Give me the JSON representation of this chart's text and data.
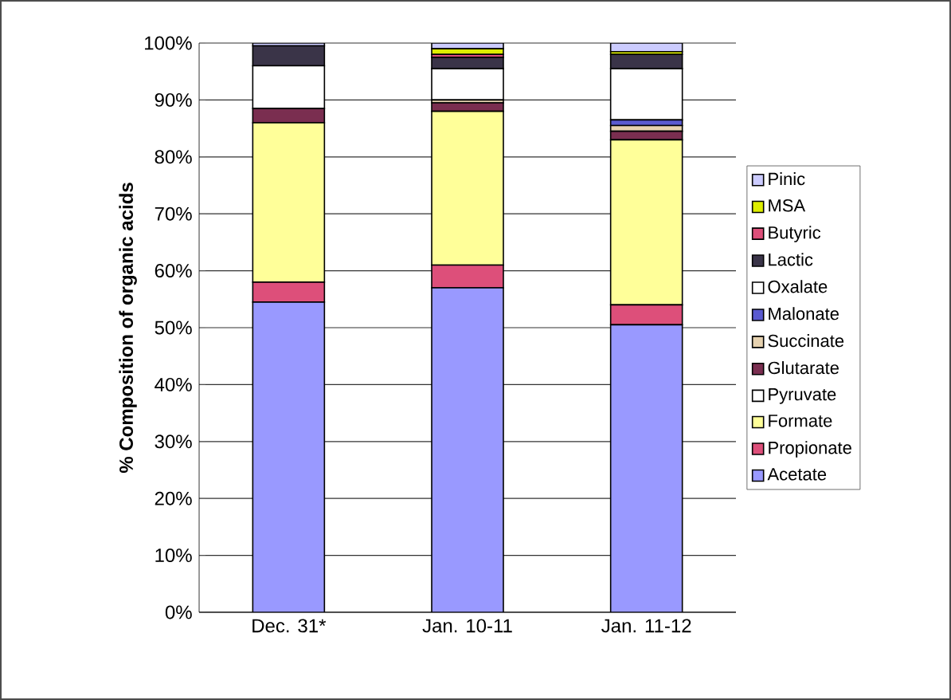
{
  "chart_data": {
    "type": "bar",
    "stacked": true,
    "ylabel": "% Composition of organic acids",
    "categories": [
      "Dec. 31*",
      "Jan. 10-11",
      "Jan. 11-12"
    ],
    "ylim": [
      0,
      100
    ],
    "yticks": [
      {
        "value": 0,
        "label": "0%"
      },
      {
        "value": 10,
        "label": "10%"
      },
      {
        "value": 20,
        "label": "20%"
      },
      {
        "value": 30,
        "label": "30%"
      },
      {
        "value": 40,
        "label": "40%"
      },
      {
        "value": 50,
        "label": "50%"
      },
      {
        "value": 60,
        "label": "60%"
      },
      {
        "value": 70,
        "label": "70%"
      },
      {
        "value": 80,
        "label": "80%"
      },
      {
        "value": 90,
        "label": "90%"
      },
      {
        "value": 100,
        "label": "100%"
      }
    ],
    "grid": "y",
    "legend": "right",
    "series": [
      {
        "name": "Acetate",
        "color": "#9999ff",
        "values": [
          54.5,
          57,
          50.5
        ]
      },
      {
        "name": "Propionate",
        "color": "#dd4f7a",
        "values": [
          3.5,
          4,
          3.5
        ]
      },
      {
        "name": "Formate",
        "color": "#ffff99",
        "values": [
          28,
          27,
          29
        ]
      },
      {
        "name": "Pyruvate",
        "color": "#ffffff",
        "values": [
          0,
          0,
          0
        ]
      },
      {
        "name": "Glutarate",
        "color": "#7a2e50",
        "values": [
          2.5,
          1.5,
          1.5
        ]
      },
      {
        "name": "Succinate",
        "color": "#e6d2b0",
        "values": [
          0,
          0.5,
          1
        ]
      },
      {
        "name": "Malonate",
        "color": "#5a5ad0",
        "values": [
          0,
          0,
          1
        ]
      },
      {
        "name": "Oxalate",
        "color": "#ffffff",
        "values": [
          7.5,
          5.5,
          9
        ]
      },
      {
        "name": "Lactic",
        "color": "#3a3448",
        "values": [
          3.5,
          2,
          2.5
        ]
      },
      {
        "name": "Butyric",
        "color": "#dd4f7a",
        "values": [
          0,
          0.5,
          0
        ]
      },
      {
        "name": "MSA",
        "color": "#ddee00",
        "values": [
          0,
          1,
          0.5
        ]
      },
      {
        "name": "Pinic",
        "color": "#ccccff",
        "values": [
          0.5,
          1,
          1.5
        ]
      }
    ]
  }
}
